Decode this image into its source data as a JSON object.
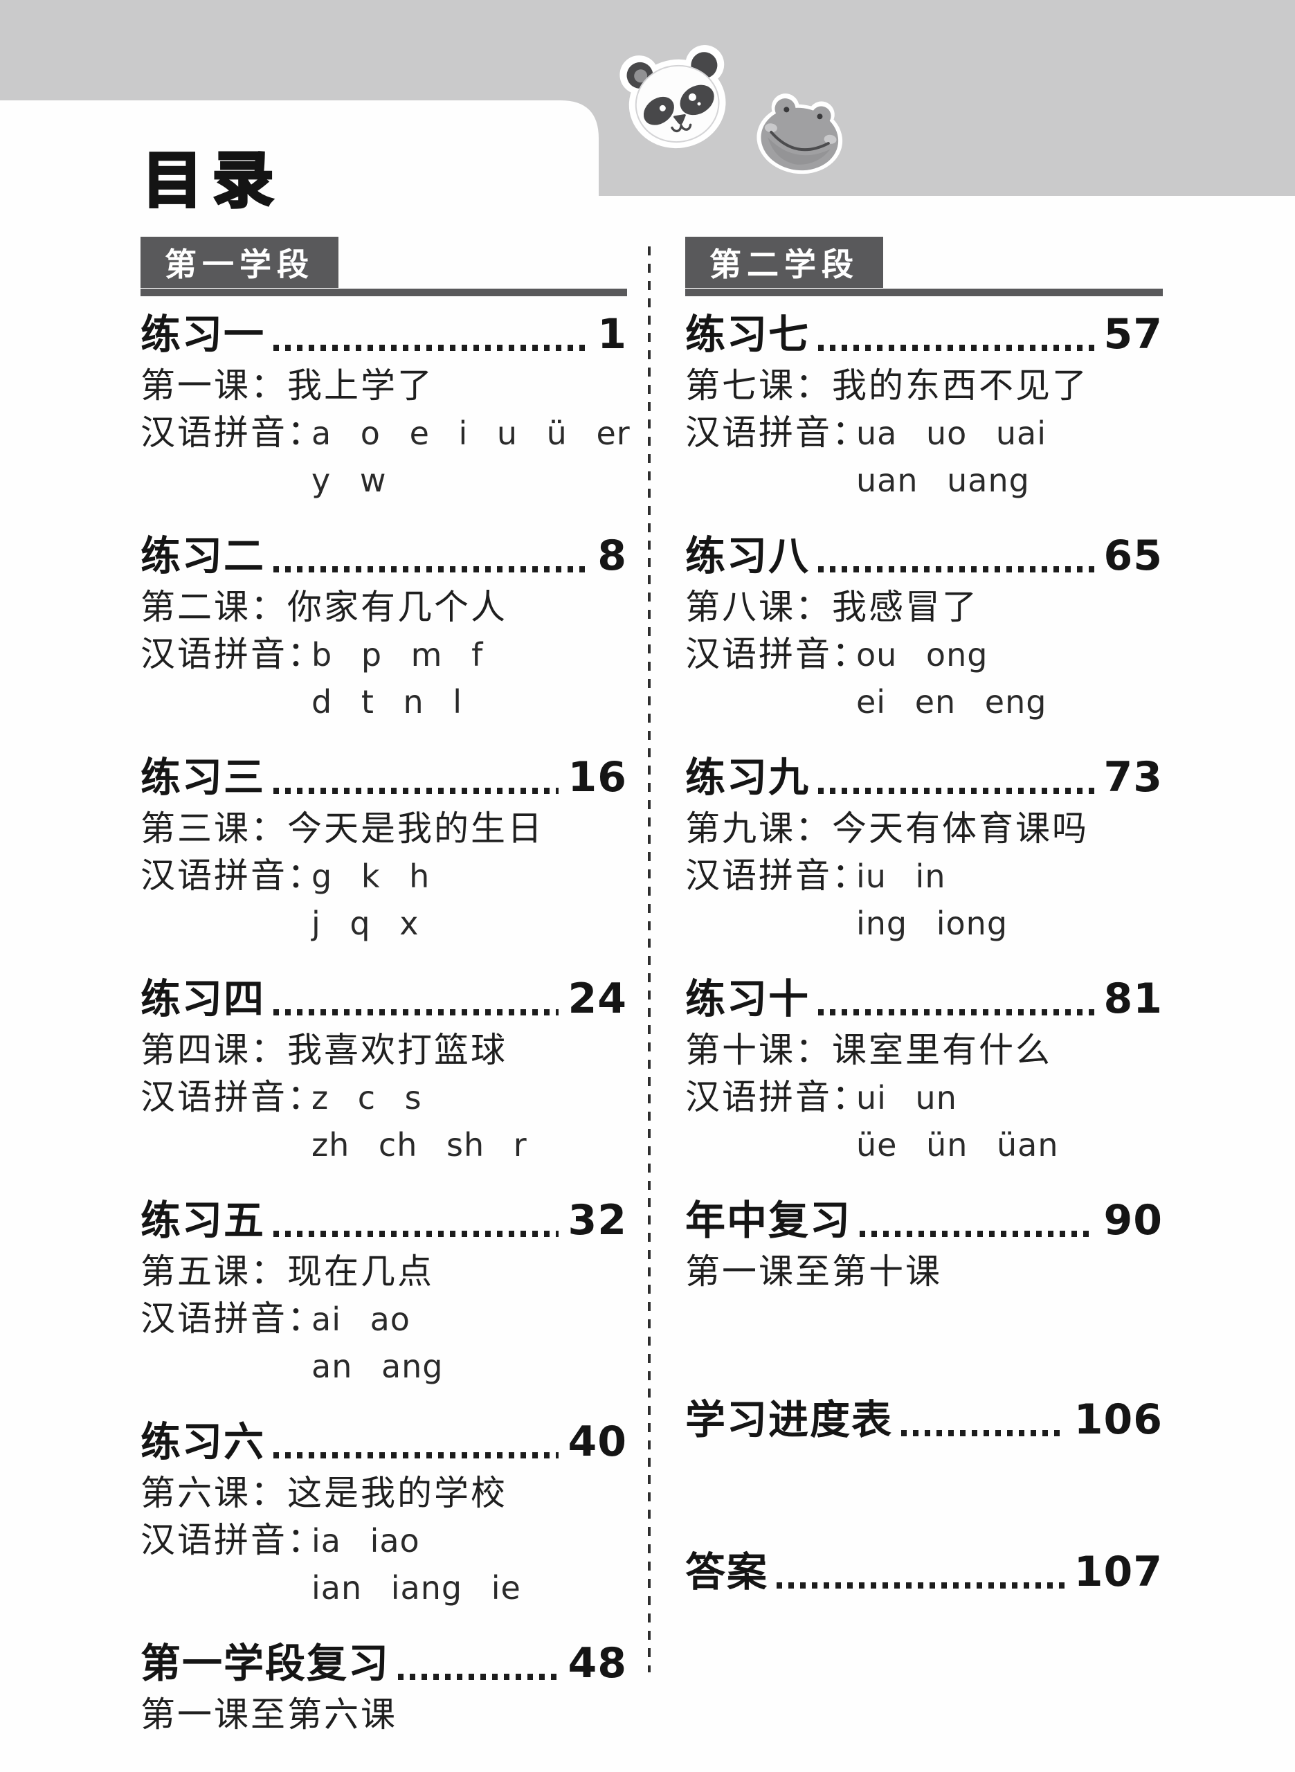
{
  "page": {
    "title": "目录"
  },
  "theme": {
    "band_color": "#cacacb",
    "accent_color": "#59595b",
    "text_color": "#1c1c1c",
    "dot_color": "#1c1c1c"
  },
  "stickers": {
    "panda": "panda-face",
    "frog": "frog-face"
  },
  "columns": [
    {
      "section": "第一学段",
      "entries": [
        {
          "title": "练习一",
          "page": "1",
          "course": "第一课：我上学了",
          "pinyin_label": "汉语拼音：",
          "pinyin_line1": "a o e i u ü er",
          "pinyin_line2": "y w"
        },
        {
          "title": "练习二",
          "page": "8",
          "course": "第二课：你家有几个人",
          "pinyin_label": "汉语拼音：",
          "pinyin_line1": "b p m f",
          "pinyin_line2": "d t n l"
        },
        {
          "title": "练习三",
          "page": "16",
          "course": "第三课：今天是我的生日",
          "pinyin_label": "汉语拼音：",
          "pinyin_line1": "g k h",
          "pinyin_line2": "j q x"
        },
        {
          "title": "练习四",
          "page": "24",
          "course": "第四课：我喜欢打篮球",
          "pinyin_label": "汉语拼音：",
          "pinyin_line1": "z c s",
          "pinyin_line2": "zh ch sh r"
        },
        {
          "title": "练习五",
          "page": "32",
          "course": "第五课：现在几点",
          "pinyin_label": "汉语拼音：",
          "pinyin_line1": "ai ao",
          "pinyin_line2": "an ang"
        },
        {
          "title": "练习六",
          "page": "40",
          "course": "第六课：这是我的学校",
          "pinyin_label": "汉语拼音：",
          "pinyin_line1": "ia iao",
          "pinyin_line2": "ian iang ie"
        },
        {
          "title": "第一学段复习",
          "page": "48",
          "course": "第一课至第六课"
        }
      ]
    },
    {
      "section": "第二学段",
      "entries": [
        {
          "title": "练习七",
          "page": "57",
          "course": "第七课：我的东西不见了",
          "pinyin_label": "汉语拼音：",
          "pinyin_line1": "ua uo uai",
          "pinyin_line2": "uan uang"
        },
        {
          "title": "练习八",
          "page": "65",
          "course": "第八课：我感冒了",
          "pinyin_label": "汉语拼音：",
          "pinyin_line1": "ou ong",
          "pinyin_line2": "ei en eng"
        },
        {
          "title": "练习九",
          "page": "73",
          "course": "第九课：今天有体育课吗",
          "pinyin_label": "汉语拼音：",
          "pinyin_line1": "iu in",
          "pinyin_line2": "ing iong"
        },
        {
          "title": "练习十",
          "page": "81",
          "course": "第十课：课室里有什么",
          "pinyin_label": "汉语拼音：",
          "pinyin_line1": "ui un",
          "pinyin_line2": "üe ün üan"
        },
        {
          "title": "年中复习",
          "page": "90",
          "course": "第一课至第十课"
        },
        {
          "title": "学习进度表",
          "page": "106"
        },
        {
          "title": "答案",
          "page": "107"
        }
      ]
    }
  ]
}
